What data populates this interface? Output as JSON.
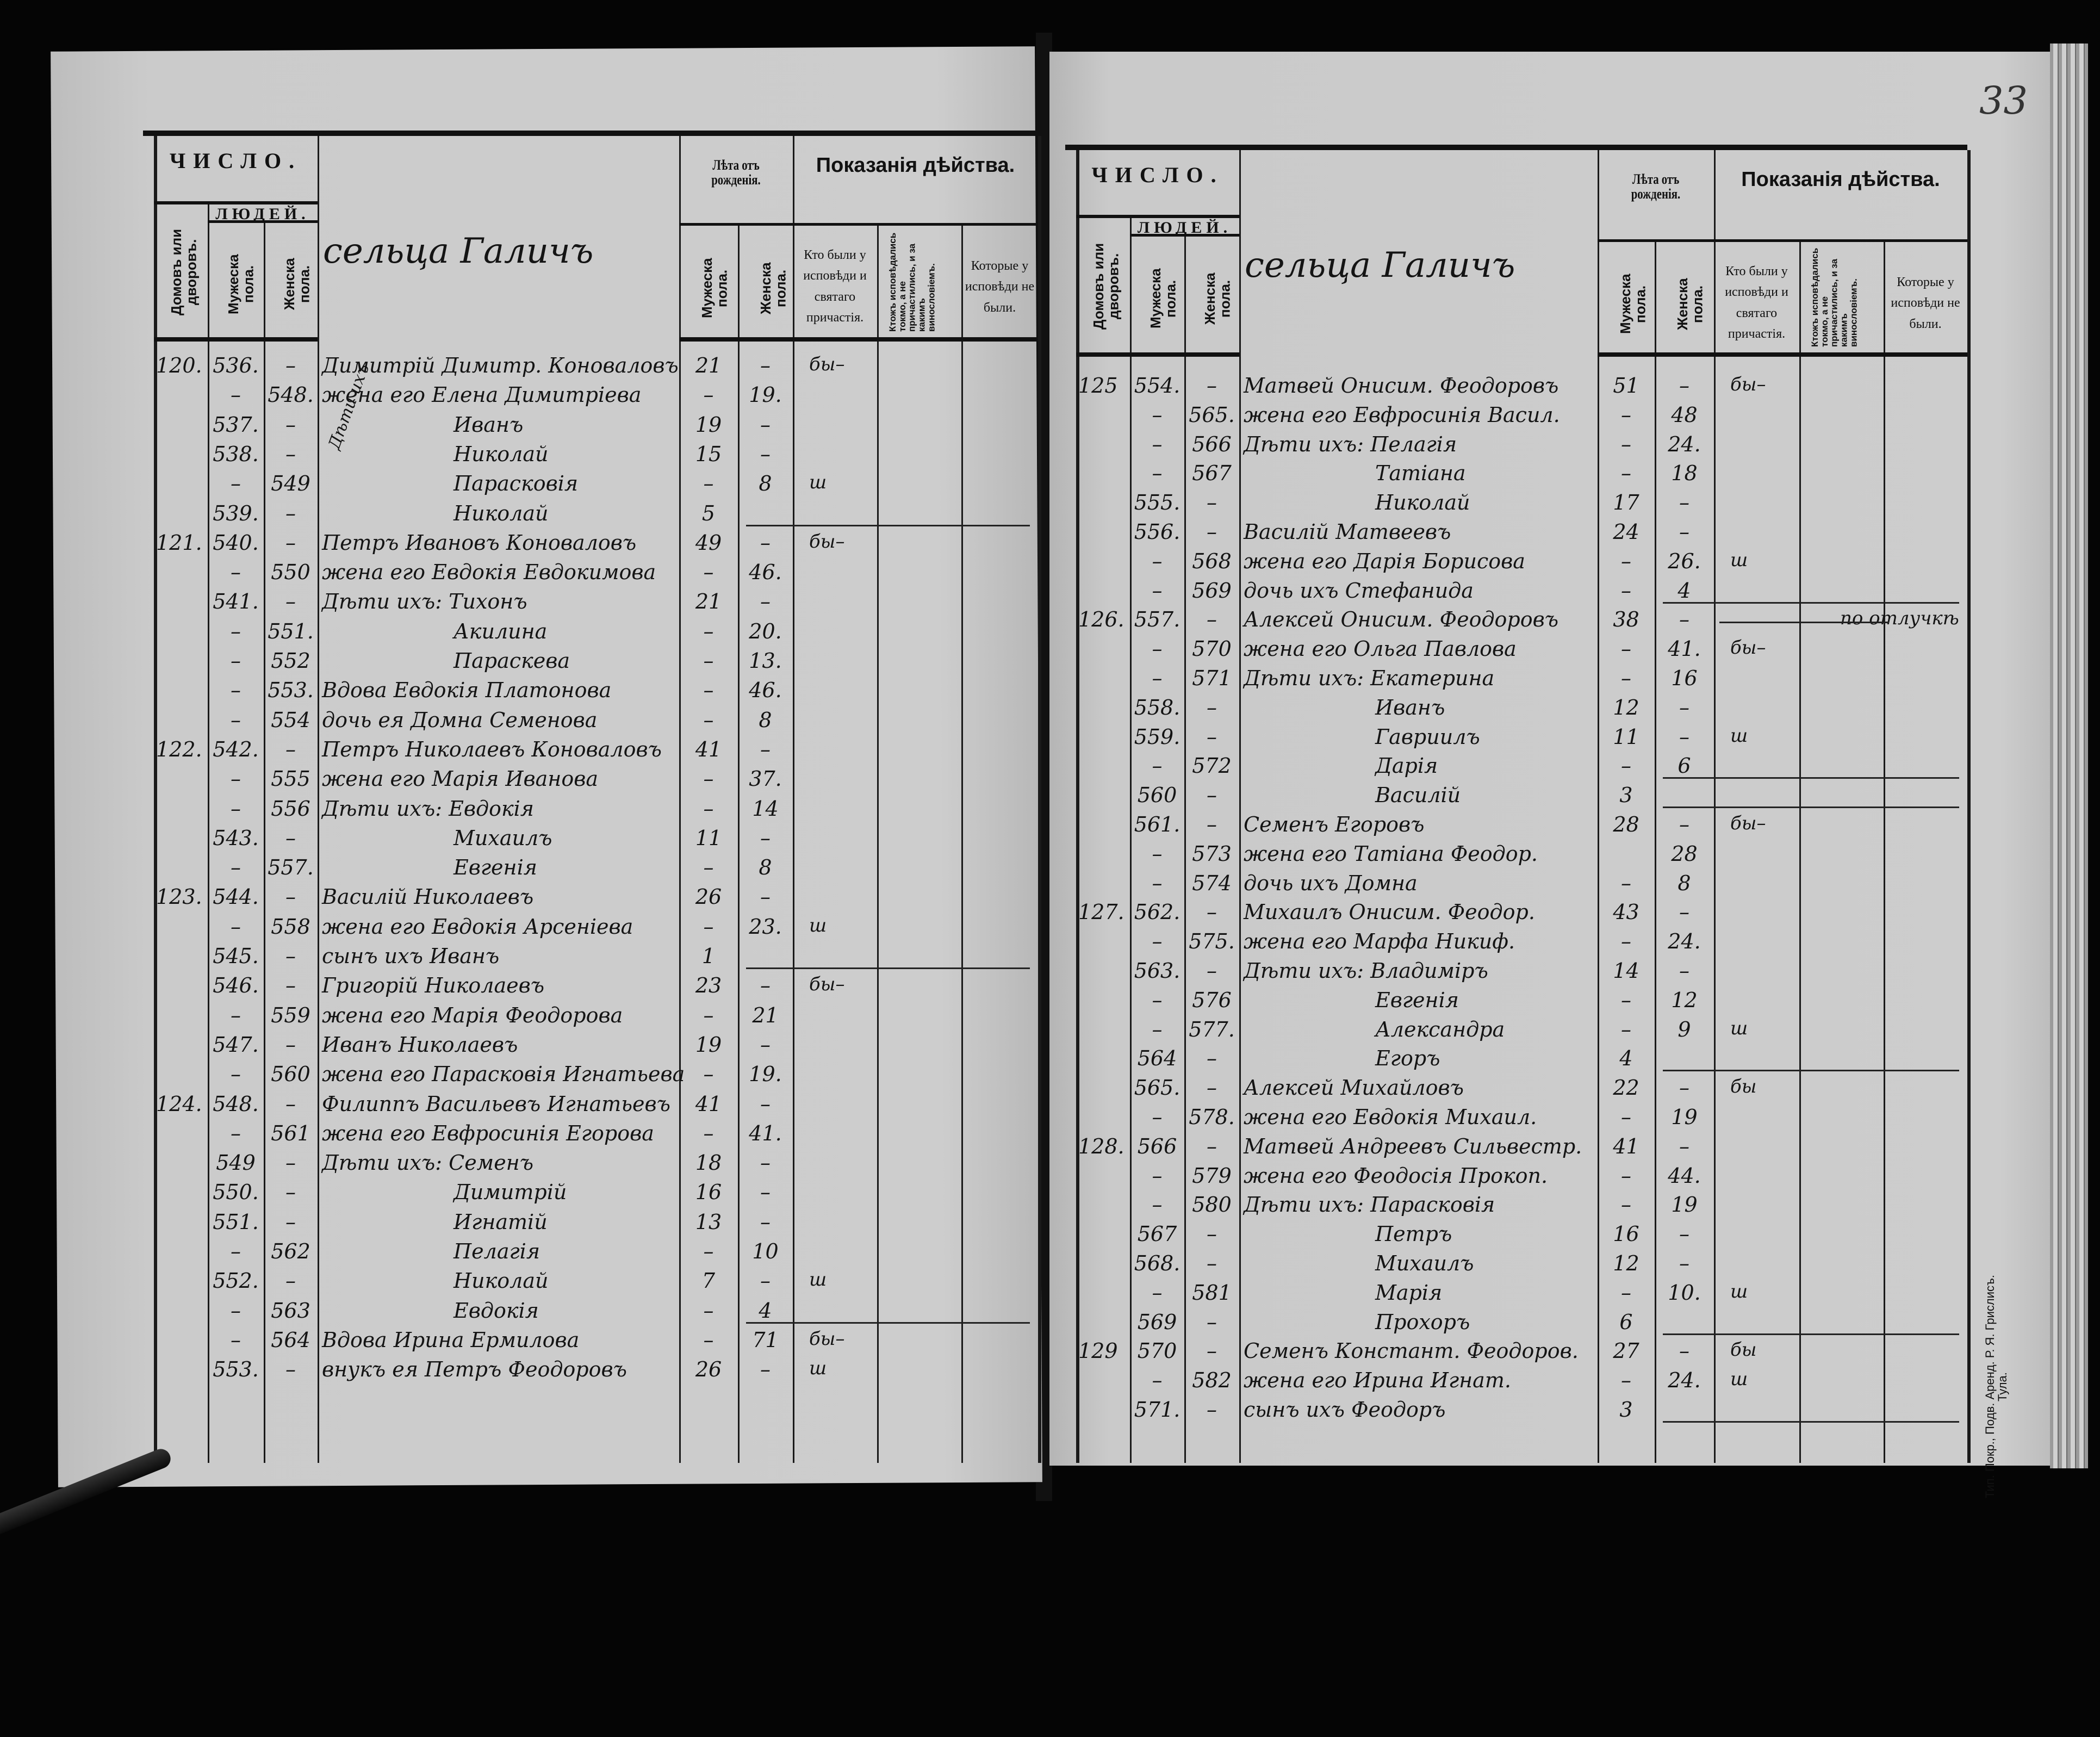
{
  "page_number": "33",
  "printer_imprint": "Тип. Покр., Подв. Аренд. Р. Я. Грислисъ. Тула.",
  "header": {
    "chislo": "ЧИСЛО.",
    "lyudey": "ЛЮДЕЙ.",
    "domov": "Домовъ или дворовъ.",
    "muzh": "Мужеска пола.",
    "zhen": "Женска пола.",
    "leta": "Лѣта отъ рожденія.",
    "pokazaniya": "Показанія дѣйства.",
    "leta_muzh": "Мужеска пола.",
    "leta_zhen": "Женска пола.",
    "byli": "Кто были у исповѣди и святаго причастія.",
    "ispovedalis": "Ктожъ исповѣдались токмо, а не причастились, и за какимъ винословіемъ.",
    "ne_byli": "Которые у исповѣди не были."
  },
  "left_page": {
    "village": "сельца Галичъ",
    "margin_note": "Дѣти ихъ",
    "rows": [
      {
        "house": "120.",
        "m": "536.",
        "f": "–",
        "name": "Димитрій Димитр. Коноваловъ",
        "am": "21",
        "af": "–",
        "conf": "бы–"
      },
      {
        "house": "",
        "m": "–",
        "f": "548.",
        "name": "жена его Елена Димитріева",
        "am": "–",
        "af": "19.",
        "conf": ""
      },
      {
        "house": "",
        "m": "537.",
        "f": "–",
        "name": "Иванъ",
        "am": "19",
        "af": "–",
        "conf": ""
      },
      {
        "house": "",
        "m": "538.",
        "f": "–",
        "name": "Николай",
        "am": "15",
        "af": "–",
        "conf": ""
      },
      {
        "house": "",
        "m": "–",
        "f": "549",
        "name": "Парасковія",
        "am": "–",
        "af": "8",
        "conf": "ш"
      },
      {
        "house": "",
        "m": "539.",
        "f": "–",
        "name": "Николай",
        "am": "5",
        "af": "",
        "conf": "",
        "rule": true
      },
      {
        "house": "121.",
        "m": "540.",
        "f": "–",
        "name": "Петръ Ивановъ Коноваловъ",
        "am": "49",
        "af": "–",
        "conf": "бы–"
      },
      {
        "house": "",
        "m": "–",
        "f": "550",
        "name": "жена его Евдокія Евдокимова",
        "am": "–",
        "af": "46.",
        "conf": ""
      },
      {
        "house": "",
        "m": "541.",
        "f": "–",
        "name": "Дѣти ихъ: Тихонъ",
        "am": "21",
        "af": "–",
        "conf": ""
      },
      {
        "house": "",
        "m": "–",
        "f": "551.",
        "name": "Акилина",
        "am": "–",
        "af": "20.",
        "conf": ""
      },
      {
        "house": "",
        "m": "–",
        "f": "552",
        "name": "Параскева",
        "am": "–",
        "af": "13.",
        "conf": ""
      },
      {
        "house": "",
        "m": "–",
        "f": "553.",
        "name": "Вдова Евдокія Платонова",
        "am": "–",
        "af": "46.",
        "conf": ""
      },
      {
        "house": "",
        "m": "–",
        "f": "554",
        "name": "дочь ея Домна Семенова",
        "am": "–",
        "af": "8",
        "conf": ""
      },
      {
        "house": "122.",
        "m": "542.",
        "f": "–",
        "name": "Петръ Николаевъ Коноваловъ",
        "am": "41",
        "af": "–",
        "conf": ""
      },
      {
        "house": "",
        "m": "–",
        "f": "555",
        "name": "жена его Марія Иванова",
        "am": "–",
        "af": "37.",
        "conf": ""
      },
      {
        "house": "",
        "m": "–",
        "f": "556",
        "name": "Дѣти ихъ: Евдокія",
        "am": "–",
        "af": "14",
        "conf": ""
      },
      {
        "house": "",
        "m": "543.",
        "f": "–",
        "name": "Михаилъ",
        "am": "11",
        "af": "–",
        "conf": ""
      },
      {
        "house": "",
        "m": "–",
        "f": "557.",
        "name": "Евгенія",
        "am": "–",
        "af": "8",
        "conf": ""
      },
      {
        "house": "123.",
        "m": "544.",
        "f": "–",
        "name": "Василій Николаевъ",
        "am": "26",
        "af": "–",
        "conf": ""
      },
      {
        "house": "",
        "m": "–",
        "f": "558",
        "name": "жена его Евдокія Арсеніева",
        "am": "–",
        "af": "23.",
        "conf": "ш"
      },
      {
        "house": "",
        "m": "545.",
        "f": "–",
        "name": "сынъ ихъ Иванъ",
        "am": "1",
        "af": "",
        "conf": "",
        "rule": true
      },
      {
        "house": "",
        "m": "546.",
        "f": "–",
        "name": "Григорій Николаевъ",
        "am": "23",
        "af": "–",
        "conf": "бы–"
      },
      {
        "house": "",
        "m": "–",
        "f": "559",
        "name": "жена его Марія Феодорова",
        "am": "–",
        "af": "21",
        "conf": ""
      },
      {
        "house": "",
        "m": "547.",
        "f": "–",
        "name": "Иванъ Николаевъ",
        "am": "19",
        "af": "–",
        "conf": ""
      },
      {
        "house": "",
        "m": "–",
        "f": "560",
        "name": "жена его Парасковія Игнатьева",
        "am": "–",
        "af": "19.",
        "conf": ""
      },
      {
        "house": "124.",
        "m": "548.",
        "f": "–",
        "name": "Филиппъ Васильевъ Игнатьевъ",
        "am": "41",
        "af": "–",
        "conf": ""
      },
      {
        "house": "",
        "m": "–",
        "f": "561",
        "name": "жена его Евфросинія Егорова",
        "am": "–",
        "af": "41.",
        "conf": ""
      },
      {
        "house": "",
        "m": "549",
        "f": "–",
        "name": "Дѣти ихъ: Семенъ",
        "am": "18",
        "af": "–",
        "conf": ""
      },
      {
        "house": "",
        "m": "550.",
        "f": "–",
        "name": "Димитрій",
        "am": "16",
        "af": "–",
        "conf": ""
      },
      {
        "house": "",
        "m": "551.",
        "f": "–",
        "name": "Игнатій",
        "am": "13",
        "af": "–",
        "conf": ""
      },
      {
        "house": "",
        "m": "–",
        "f": "562",
        "name": "Пелагія",
        "am": "–",
        "af": "10",
        "conf": ""
      },
      {
        "house": "",
        "m": "552.",
        "f": "–",
        "name": "Николай",
        "am": "7",
        "af": "–",
        "conf": "ш"
      },
      {
        "house": "",
        "m": "–",
        "f": "563",
        "name": "Евдокія",
        "am": "–",
        "af": "4",
        "conf": "",
        "rule": true
      },
      {
        "house": "",
        "m": "–",
        "f": "564",
        "name": "Вдова Ирина Ермилова",
        "am": "–",
        "af": "71",
        "conf": "бы–"
      },
      {
        "house": "",
        "m": "553.",
        "f": "–",
        "name": "внукъ ея Петръ Феодоровъ",
        "am": "26",
        "af": "–",
        "conf": "ш"
      }
    ]
  },
  "right_page": {
    "village": "сельца Галичъ",
    "rows": [
      {
        "house": "125",
        "m": "554.",
        "f": "–",
        "name": "Матвей Онисим. Феодоровъ",
        "am": "51",
        "af": "–",
        "conf": "бы–"
      },
      {
        "house": "",
        "m": "–",
        "f": "565.",
        "name": "жена его Евфросинія Васил.",
        "am": "–",
        "af": "48",
        "conf": ""
      },
      {
        "house": "",
        "m": "–",
        "f": "566",
        "name": "Дѣти ихъ: Пелагія",
        "am": "–",
        "af": "24.",
        "conf": ""
      },
      {
        "house": "",
        "m": "–",
        "f": "567",
        "name": "Татіана",
        "am": "–",
        "af": "18",
        "conf": ""
      },
      {
        "house": "",
        "m": "555.",
        "f": "–",
        "name": "Николай",
        "am": "17",
        "af": "–",
        "conf": ""
      },
      {
        "house": "",
        "m": "556.",
        "f": "–",
        "name": "Василій Матвеевъ",
        "am": "24",
        "af": "–",
        "conf": ""
      },
      {
        "house": "",
        "m": "–",
        "f": "568",
        "name": "жена его Дарія Борисова",
        "am": "–",
        "af": "26.",
        "conf": "ш"
      },
      {
        "house": "",
        "m": "–",
        "f": "569",
        "name": "дочь ихъ Стефанида",
        "am": "–",
        "af": "4",
        "conf": "",
        "rule": true
      },
      {
        "house": "126.",
        "m": "557.",
        "f": "–",
        "name": "Алексей Онисим. Феодоровъ",
        "am": "38",
        "af": "–",
        "conf": "",
        "rule_partial": true,
        "notconf": "по отлучкѣ"
      },
      {
        "house": "",
        "m": "–",
        "f": "570",
        "name": "жена его Ольга Павлова",
        "am": "–",
        "af": "41.",
        "conf": "бы–"
      },
      {
        "house": "",
        "m": "–",
        "f": "571",
        "name": "Дѣти ихъ: Екатерина",
        "am": "–",
        "af": "16",
        "conf": ""
      },
      {
        "house": "",
        "m": "558.",
        "f": "–",
        "name": "Иванъ",
        "am": "12",
        "af": "–",
        "conf": ""
      },
      {
        "house": "",
        "m": "559.",
        "f": "–",
        "name": "Гавриилъ",
        "am": "11",
        "af": "–",
        "conf": "ш"
      },
      {
        "house": "",
        "m": "–",
        "f": "572",
        "name": "Дарія",
        "am": "–",
        "af": "6",
        "conf": "",
        "rule": true
      },
      {
        "house": "",
        "m": "560",
        "f": "–",
        "name": "Василій",
        "am": "3",
        "af": "",
        "conf": "",
        "rule": true
      },
      {
        "house": "",
        "m": "561.",
        "f": "–",
        "name": "Семенъ Егоровъ",
        "am": "28",
        "af": "–",
        "conf": "бы–"
      },
      {
        "house": "",
        "m": "–",
        "f": "573",
        "name": "жена его Татіана Феодор.",
        "am": "",
        "af": "28",
        "conf": ""
      },
      {
        "house": "",
        "m": "–",
        "f": "574",
        "name": "дочь ихъ Домна",
        "am": "–",
        "af": "8",
        "conf": ""
      },
      {
        "house": "127.",
        "m": "562.",
        "f": "–",
        "name": "Михаилъ Онисим. Феодор.",
        "am": "43",
        "af": "–",
        "conf": ""
      },
      {
        "house": "",
        "m": "–",
        "f": "575.",
        "name": "жена его Марфа Никиф.",
        "am": "–",
        "af": "24.",
        "conf": ""
      },
      {
        "house": "",
        "m": "563.",
        "f": "–",
        "name": "Дѣти ихъ: Владиміръ",
        "am": "14",
        "af": "–",
        "conf": ""
      },
      {
        "house": "",
        "m": "–",
        "f": "576",
        "name": "Евгенія",
        "am": "–",
        "af": "12",
        "conf": ""
      },
      {
        "house": "",
        "m": "–",
        "f": "577.",
        "name": "Александра",
        "am": "–",
        "af": "9",
        "conf": "ш"
      },
      {
        "house": "",
        "m": "564",
        "f": "–",
        "name": "Егоръ",
        "am": "4",
        "af": "",
        "conf": "",
        "rule": true
      },
      {
        "house": "",
        "m": "565.",
        "f": "–",
        "name": "Алексей Михайловъ",
        "am": "22",
        "af": "–",
        "conf": "бы"
      },
      {
        "house": "",
        "m": "–",
        "f": "578.",
        "name": "жена его Евдокія Михаил.",
        "am": "–",
        "af": "19",
        "conf": ""
      },
      {
        "house": "128.",
        "m": "566",
        "f": "–",
        "name": "Матвей Андреевъ Сильвестр.",
        "am": "41",
        "af": "–",
        "conf": ""
      },
      {
        "house": "",
        "m": "–",
        "f": "579",
        "name": "жена его Феодосія Прокоп.",
        "am": "–",
        "af": "44.",
        "conf": ""
      },
      {
        "house": "",
        "m": "–",
        "f": "580",
        "name": "Дѣти ихъ: Парасковія",
        "am": "–",
        "af": "19",
        "conf": ""
      },
      {
        "house": "",
        "m": "567",
        "f": "–",
        "name": "Петръ",
        "am": "16",
        "af": "–",
        "conf": ""
      },
      {
        "house": "",
        "m": "568.",
        "f": "–",
        "name": "Михаилъ",
        "am": "12",
        "af": "–",
        "conf": ""
      },
      {
        "house": "",
        "m": "–",
        "f": "581",
        "name": "Марія",
        "am": "–",
        "af": "10.",
        "conf": "ш"
      },
      {
        "house": "",
        "m": "569",
        "f": "–",
        "name": "Прохоръ",
        "am": "6",
        "af": "",
        "conf": "",
        "rule": true
      },
      {
        "house": "129",
        "m": "570",
        "f": "–",
        "name": "Семенъ Констант. Феодоров.",
        "am": "27",
        "af": "–",
        "conf": "бы"
      },
      {
        "house": "",
        "m": "–",
        "f": "582",
        "name": "жена его Ирина Игнат.",
        "am": "–",
        "af": "24.",
        "conf": "ш"
      },
      {
        "house": "",
        "m": "571.",
        "f": "–",
        "name": "сынъ ихъ Феодоръ",
        "am": "3",
        "af": "",
        "conf": "",
        "rule": true
      }
    ]
  }
}
